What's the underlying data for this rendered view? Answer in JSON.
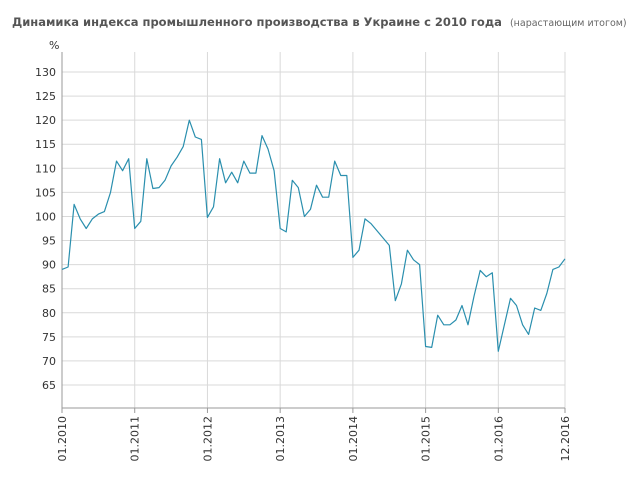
{
  "header": {
    "title": "Динамика индекса промышленного производства в Украине с 2010 года",
    "subtitle": "(нарастающим итогом)"
  },
  "colors": {
    "line": "#2a8fae",
    "grid": "#d9d9d9",
    "axis": "#9a9a9a"
  },
  "chart_data": {
    "type": "line",
    "ylabel": "%",
    "ylim": [
      60,
      135
    ],
    "yticks": [
      65,
      70,
      75,
      80,
      85,
      90,
      95,
      100,
      105,
      110,
      115,
      120,
      125,
      130
    ],
    "xlim": [
      0,
      83
    ],
    "xticks": [
      {
        "x": 0,
        "label": "01.2010"
      },
      {
        "x": 12,
        "label": "01.2011"
      },
      {
        "x": 24,
        "label": "01.2012"
      },
      {
        "x": 36,
        "label": "01.2013"
      },
      {
        "x": 48,
        "label": "01.2014"
      },
      {
        "x": 60,
        "label": "01.2015"
      },
      {
        "x": 72,
        "label": "01.2016"
      },
      {
        "x": 83,
        "label": "12.2016"
      }
    ],
    "grid": true,
    "series": [
      {
        "x": [
          0,
          1,
          2,
          3,
          4,
          5,
          6,
          7,
          8,
          9,
          10,
          11,
          12,
          13,
          14,
          15,
          16,
          17,
          18,
          19,
          20,
          21,
          22,
          23,
          24,
          25,
          26,
          27,
          28,
          29,
          30,
          31,
          32,
          33,
          34,
          35,
          36,
          37,
          38,
          39,
          40,
          41,
          42,
          43,
          44,
          45,
          46,
          47,
          48,
          49,
          50,
          51,
          52,
          53,
          54,
          55,
          56,
          57,
          58,
          59,
          60,
          61,
          62,
          63,
          64,
          65,
          66,
          67,
          68,
          69,
          70,
          71,
          72,
          73,
          74,
          75,
          76,
          77,
          78,
          79,
          80,
          81,
          82,
          83
        ],
        "values": [
          89.0,
          89.5,
          102.5,
          99.5,
          97.5,
          99.5,
          100.5,
          101.0,
          105.0,
          111.5,
          109.5,
          112.0,
          97.5,
          99.0,
          112.0,
          105.8,
          106.0,
          107.5,
          110.5,
          112.3,
          114.5,
          120.0,
          116.5,
          116.0,
          99.8,
          102.0,
          112.0,
          107.0,
          109.2,
          107.0,
          111.5,
          109.0,
          109.0,
          116.8,
          114.0,
          109.5,
          97.5,
          96.8,
          107.5,
          106.0,
          100.0,
          101.5,
          106.5,
          104.0,
          104.0,
          111.5,
          108.5,
          108.5,
          91.5,
          93.0,
          99.5,
          98.5,
          97.0,
          95.5,
          94.0,
          82.5,
          86.0,
          93.0,
          91.0,
          90.0,
          73.0,
          72.8,
          79.5,
          77.5,
          77.5,
          78.5,
          81.5,
          77.5,
          83.5,
          88.8,
          87.5,
          88.3,
          72.0,
          77.5,
          83.0,
          81.5,
          77.5,
          75.5,
          81.0,
          80.5,
          84.0,
          89.0,
          89.5,
          91.2
        ]
      }
    ]
  }
}
